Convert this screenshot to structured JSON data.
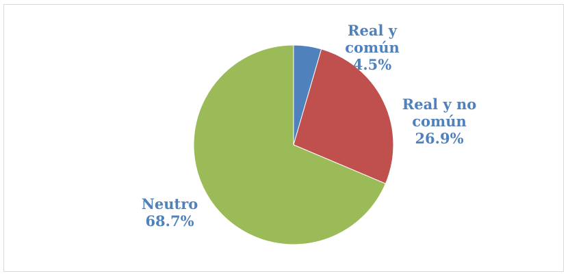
{
  "chart_data": {
    "type": "pie",
    "title": "",
    "slices": [
      {
        "label_lines": [
          "Real y",
          "común"
        ],
        "value": 4.5,
        "value_label": "4.5%",
        "color": "#4f81bd"
      },
      {
        "label_lines": [
          "Real y no",
          "común"
        ],
        "value": 26.9,
        "value_label": "26.9%",
        "color": "#c0504d"
      },
      {
        "label_lines": [
          "Neutro"
        ],
        "value": 68.7,
        "value_label": "68.7%",
        "color": "#9bbb59"
      }
    ],
    "start_angle_deg": 0,
    "direction": "clockwise",
    "label_color": "#4f81bd",
    "legend": "none"
  }
}
